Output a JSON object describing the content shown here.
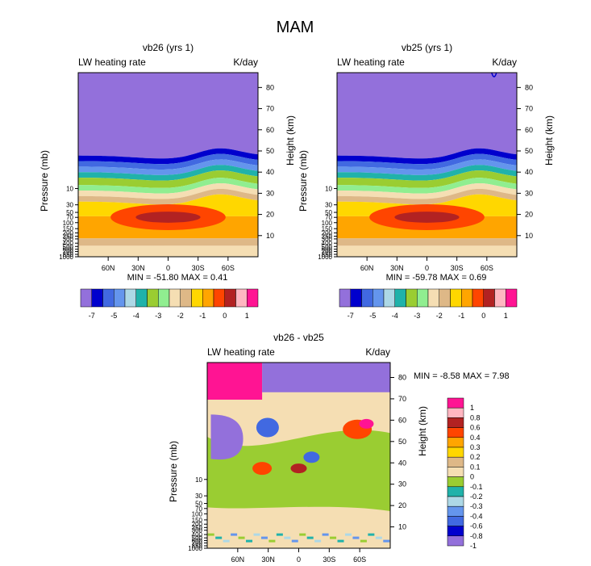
{
  "figure": {
    "title": "MAM"
  },
  "chart_data": [
    {
      "type": "heatmap",
      "title": "vb26 (yrs 1)",
      "subtitle_left": "LW heating rate",
      "subtitle_right": "K/day",
      "ylabel_left": "Pressure (mb)",
      "ylabel_right": "Height (km)",
      "xticks": [
        "60N",
        "30N",
        "0",
        "30S",
        "60S"
      ],
      "xtick_values": [
        60,
        30,
        0,
        -30,
        -60
      ],
      "xlim": [
        90,
        -90
      ],
      "pressure_ticks": [
        "10",
        "30",
        "50",
        "70",
        "100",
        "150",
        "200",
        "250",
        "300",
        "400",
        "500",
        "600",
        "700",
        "850",
        "1000"
      ],
      "pressure_values": [
        10,
        30,
        50,
        70,
        100,
        150,
        200,
        250,
        300,
        400,
        500,
        600,
        700,
        850,
        1000
      ],
      "height_ticks": [
        "10",
        "20",
        "30",
        "40",
        "50",
        "60",
        "70",
        "80"
      ],
      "height_values": [
        10,
        20,
        30,
        40,
        50,
        60,
        70,
        80
      ],
      "height_range_km": [
        0,
        87
      ],
      "min_label": "MIN = -51.80",
      "max_label": "MAX =   0.41",
      "min": -51.8,
      "max": 0.41,
      "levels": [
        -7,
        -6.5,
        -6,
        -5.5,
        -5,
        -4.5,
        -4,
        -3.5,
        -3,
        -2.5,
        -2,
        -1.5,
        -1,
        -0.5,
        0,
        0.5,
        1
      ],
      "colorbar_labels": [
        "-7",
        "-5",
        "-4",
        "-3",
        "-2",
        "-1",
        "0",
        "1"
      ],
      "colors": [
        "#9370db",
        "#0000cd",
        "#4169e1",
        "#6495ed",
        "#add8e6",
        "#20b2aa",
        "#9acd32",
        "#90ee90",
        "#f5deb3",
        "#deb887",
        "#ffd700",
        "#ffa500",
        "#ff4500",
        "#b22222",
        "#ffb6c1",
        "#ff1493"
      ]
    },
    {
      "type": "heatmap",
      "title": "vb25 (yrs 1)",
      "subtitle_left": "LW heating rate",
      "subtitle_right": "K/day",
      "ylabel_left": "Pressure (mb)",
      "ylabel_right": "Height (km)",
      "xticks": [
        "60N",
        "30N",
        "0",
        "30S",
        "60S"
      ],
      "xtick_values": [
        60,
        30,
        0,
        -30,
        -60
      ],
      "xlim": [
        90,
        -90
      ],
      "pressure_ticks": [
        "10",
        "30",
        "50",
        "70",
        "100",
        "150",
        "200",
        "250",
        "300",
        "400",
        "500",
        "600",
        "700",
        "850",
        "1000"
      ],
      "pressure_values": [
        10,
        30,
        50,
        70,
        100,
        150,
        200,
        250,
        300,
        400,
        500,
        600,
        700,
        850,
        1000
      ],
      "height_ticks": [
        "10",
        "20",
        "30",
        "40",
        "50",
        "60",
        "70",
        "80"
      ],
      "height_values": [
        10,
        20,
        30,
        40,
        50,
        60,
        70,
        80
      ],
      "height_range_km": [
        0,
        87
      ],
      "min_label": "MIN = -59.78",
      "max_label": "MAX =   0.69",
      "min": -59.78,
      "max": 0.69,
      "levels": [
        -7,
        -6.5,
        -6,
        -5.5,
        -5,
        -4.5,
        -4,
        -3.5,
        -3,
        -2.5,
        -2,
        -1.5,
        -1,
        -0.5,
        0,
        0.5,
        1
      ],
      "colorbar_labels": [
        "-7",
        "-5",
        "-4",
        "-3",
        "-2",
        "-1",
        "0",
        "1"
      ],
      "colors": [
        "#9370db",
        "#0000cd",
        "#4169e1",
        "#6495ed",
        "#add8e6",
        "#20b2aa",
        "#9acd32",
        "#90ee90",
        "#f5deb3",
        "#deb887",
        "#ffd700",
        "#ffa500",
        "#ff4500",
        "#b22222",
        "#ffb6c1",
        "#ff1493"
      ]
    },
    {
      "type": "heatmap",
      "title": "vb26 - vb25",
      "subtitle_left": "LW heating rate",
      "subtitle_right": "K/day",
      "ylabel_left": "Pressure (mb)",
      "ylabel_right": "Height (km)",
      "xticks": [
        "60N",
        "30N",
        "0",
        "30S",
        "60S"
      ],
      "xtick_values": [
        60,
        30,
        0,
        -30,
        -60
      ],
      "xlim": [
        90,
        -90
      ],
      "pressure_ticks": [
        "10",
        "30",
        "50",
        "70",
        "100",
        "150",
        "200",
        "250",
        "300",
        "400",
        "500",
        "600",
        "700",
        "850",
        "1000"
      ],
      "pressure_values": [
        10,
        30,
        50,
        70,
        100,
        150,
        200,
        250,
        300,
        400,
        500,
        600,
        700,
        850,
        1000
      ],
      "height_ticks": [
        "10",
        "20",
        "30",
        "40",
        "50",
        "60",
        "70",
        "80"
      ],
      "height_values": [
        10,
        20,
        30,
        40,
        50,
        60,
        70,
        80
      ],
      "height_range_km": [
        0,
        87
      ],
      "min_label": "MIN = -8.58",
      "max_label": "MAX =  7.98",
      "min": -8.58,
      "max": 7.98,
      "levels": [
        -1,
        -0.8,
        -0.6,
        -0.4,
        -0.3,
        -0.2,
        -0.1,
        0,
        0.1,
        0.2,
        0.3,
        0.4,
        0.6,
        0.8,
        1
      ],
      "colorbar_labels": [
        "1",
        "0.8",
        "0.6",
        "0.4",
        "0.3",
        "0.2",
        "0.1",
        "0",
        "-0.1",
        "-0.2",
        "-0.3",
        "-0.4",
        "-0.6",
        "-0.8",
        "-1"
      ],
      "colors": [
        "#ff1493",
        "#ffb6c1",
        "#b22222",
        "#ff4500",
        "#ffa500",
        "#ffd700",
        "#deb887",
        "#f5deb3",
        "#9acd32",
        "#20b2aa",
        "#add8e6",
        "#6495ed",
        "#4169e1",
        "#0000cd",
        "#9370db"
      ]
    }
  ]
}
